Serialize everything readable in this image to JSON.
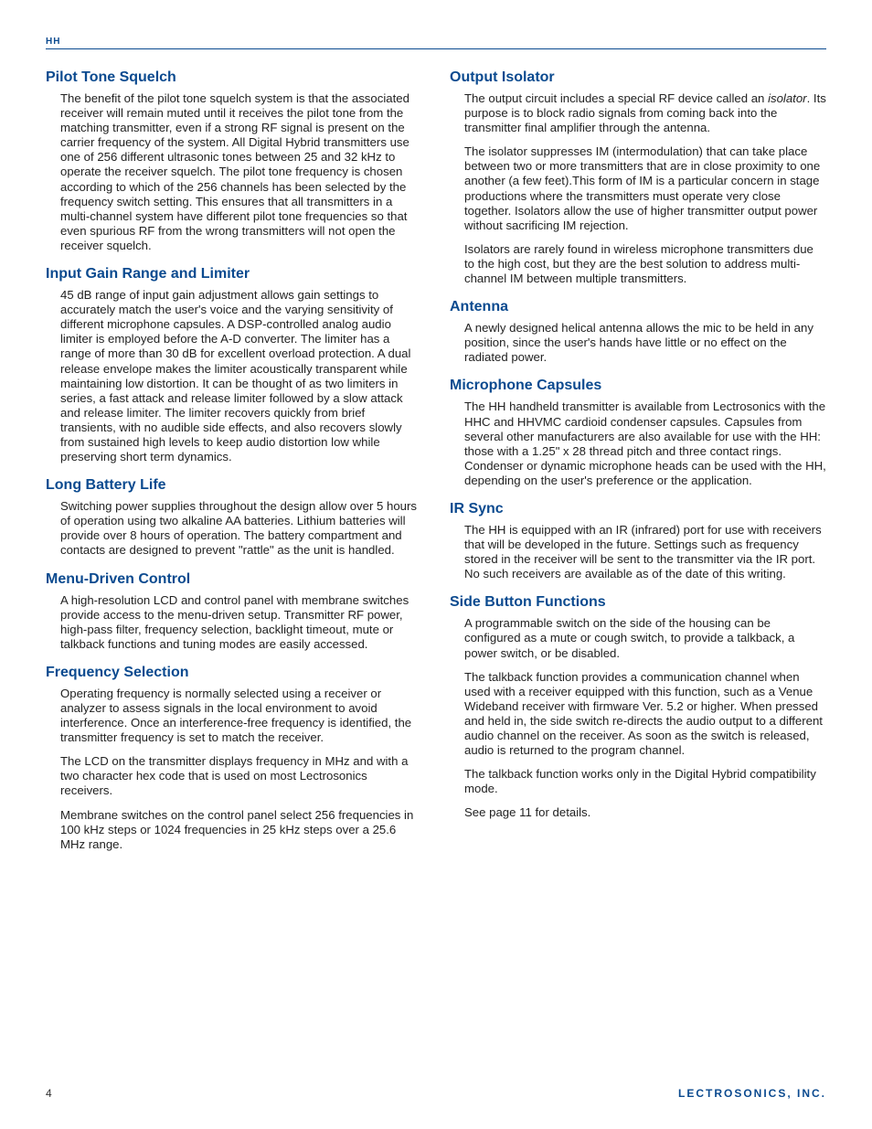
{
  "colors": {
    "brand_blue": "#0b4a8f",
    "body_text": "#222222",
    "background": "#ffffff"
  },
  "typography": {
    "heading_font": "Arial Narrow",
    "heading_size_pt": 12,
    "heading_weight": "bold",
    "body_font": "Helvetica",
    "body_size_pt": 10,
    "body_line_height": 1.22
  },
  "header": {
    "label": "HH"
  },
  "left": {
    "s1": {
      "heading": "Pilot Tone Squelch",
      "p1": "The benefit of the pilot tone squelch system is that the associated receiver will remain muted until it receives the pilot tone from the matching transmitter, even if a strong RF signal is present on the carrier frequency of the system. All Digital Hybrid transmitters use one of 256 different ultrasonic tones between 25 and 32 kHz to operate the receiver squelch. The pilot tone frequency is chosen according to which of the 256 channels has been selected by the frequency switch setting. This ensures that all transmitters in a multi-channel system have different pilot tone frequencies so that even spurious RF from the wrong transmitters will not open the receiver squelch."
    },
    "s2": {
      "heading": "Input Gain Range and Limiter",
      "p1": "45 dB range of input gain adjustment allows gain settings to accurately match the user's voice and the varying sensitivity of different microphone capsules. A DSP-controlled analog audio limiter is employed before the A-D converter. The limiter has a range of more than 30 dB for excellent overload protection. A dual release envelope makes the limiter acoustically transparent while maintaining low distortion. It can be thought of as two limiters in series, a fast attack and release limiter followed by a slow attack and release limiter. The limiter recovers quickly from brief transients, with no audible side effects, and also recovers slowly from sustained high levels to keep audio distortion low while preserving short term dynamics."
    },
    "s3": {
      "heading": "Long Battery Life",
      "p1": "Switching power supplies throughout the design allow over 5 hours of operation using two alkaline AA batteries. Lithium batteries will provide over 8 hours of operation. The battery compartment and contacts are designed to prevent \"rattle\" as the unit is handled."
    },
    "s4": {
      "heading": "Menu-Driven Control",
      "p1": "A high-resolution LCD and control panel with membrane switches provide access to the menu-driven setup. Transmitter RF power, high-pass filter, frequency selection, backlight timeout, mute or talkback functions and tuning modes are easily accessed."
    },
    "s5": {
      "heading": "Frequency Selection",
      "p1": "Operating frequency is normally selected using a receiver or analyzer to assess signals in the local environment to avoid interference. Once an interference-free frequency is identified, the transmitter frequency is set to match the receiver.",
      "p2": "The LCD on the transmitter displays frequency in MHz and with a two character hex code that is used on most Lectrosonics receivers.",
      "p3": "Membrane switches on the control panel select 256 frequencies in 100 kHz steps or 1024 frequencies in 25 kHz steps over a 25.6 MHz range."
    }
  },
  "right": {
    "s1": {
      "heading": "Output Isolator",
      "p1_pre": "The output circuit includes a special RF device called an ",
      "p1_em": "isolator",
      "p1_post": ". Its purpose is to block radio signals from coming back into the transmitter final amplifier through the antenna.",
      "p2": "The isolator suppresses IM (intermodulation) that can take place between two or more transmitters that are in close proximity to one another (a few feet).This form of IM is a particular concern in stage productions where the transmitters must operate very close together. Isolators allow the use of higher transmitter output power without sacrificing IM rejection.",
      "p3": "Isolators are rarely found in wireless microphone transmitters due to the high cost, but they are the best solution to address multi-channel IM between multiple transmitters."
    },
    "s2": {
      "heading": "Antenna",
      "p1": "A newly designed helical antenna allows the mic to be held in any position, since the user's hands have little or no effect on the radiated power."
    },
    "s3": {
      "heading": "Microphone Capsules",
      "p1": "The HH handheld transmitter is available from Lectrosonics with the HHC and HHVMC cardioid condenser capsules. Capsules from several other manufacturers are also available for use with the HH:  those with a 1.25\" x 28 thread pitch and three contact rings. Condenser or dynamic microphone heads can be used with the HH, depending on the user's preference or the application."
    },
    "s4": {
      "heading": "IR Sync",
      "p1": "The HH is equipped with an IR (infrared) port for use with receivers that will be developed in the future. Settings such as frequency stored in the receiver will be sent to the transmitter via the IR port. No such receivers are available as of the date of this writing."
    },
    "s5": {
      "heading": "Side Button Functions",
      "p1": "A programmable switch on the side of the housing can be configured as a mute or cough switch, to provide a talkback, a power switch, or be disabled.",
      "p2": "The talkback function provides a communication channel when used with a receiver equipped with this function, such as a Venue Wideband receiver with firmware Ver. 5.2 or higher. When pressed and held in, the side switch re-directs the audio output to a different audio channel on the receiver.  As soon as the switch is released, audio is returned to the program channel.",
      "p3": "The talkback function works only in the Digital Hybrid compatibility mode.",
      "p4": "See page 11 for details."
    }
  },
  "footer": {
    "page": "4",
    "brand": "LECTROSONICS, INC."
  }
}
